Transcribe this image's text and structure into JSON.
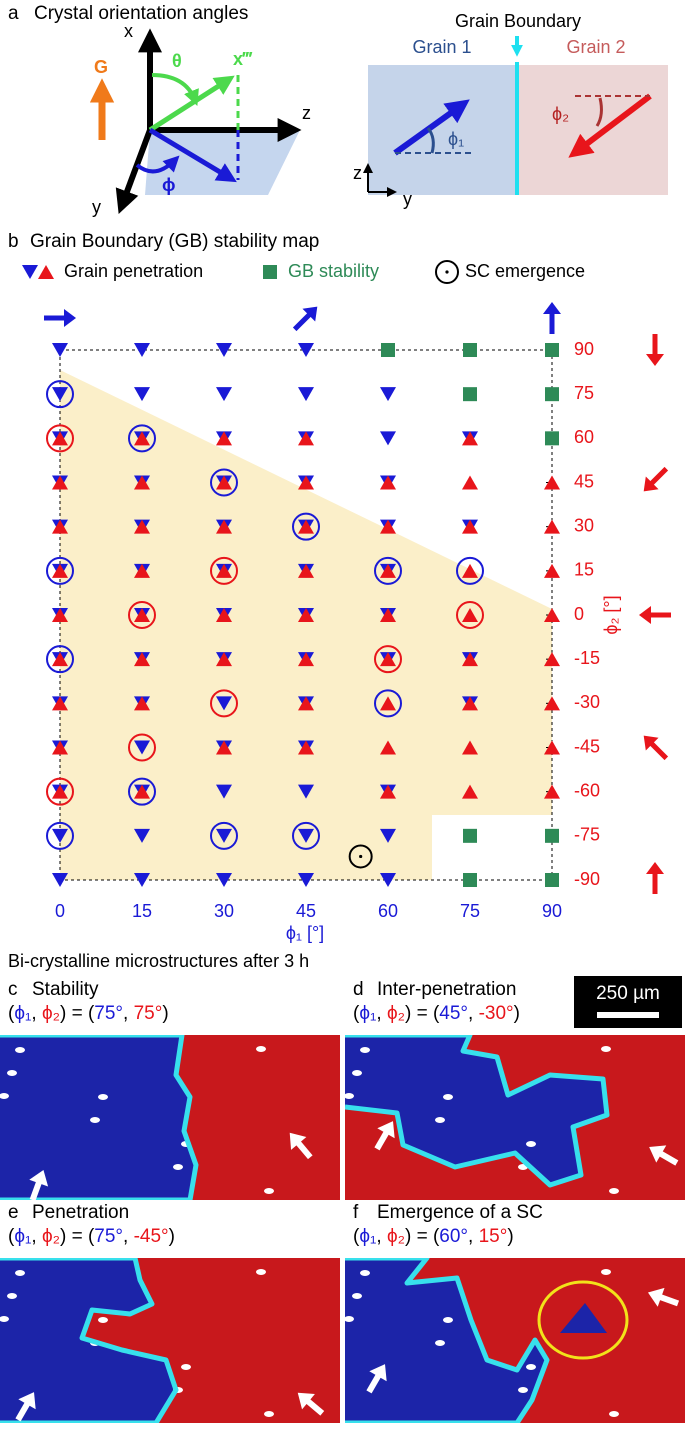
{
  "panel_a": {
    "letter": "a",
    "title": "Crystal orientation angles",
    "axis_x": "x",
    "axis_z": "z",
    "axis_y": "y",
    "gravity": "G",
    "theta": "θ",
    "x_prime": "x‴",
    "phi": "ϕ",
    "gb_title": "Grain Boundary",
    "grain1": "Grain 1",
    "grain2": "Grain 2",
    "phi1": "ϕ₁",
    "phi2": "ϕ₂",
    "small_z": "z",
    "small_y": "y"
  },
  "chart_data": {
    "type": "scatter",
    "panel": "b",
    "title": "Grain Boundary (GB) stability map",
    "x_label": "ϕ₁ [°]",
    "y_label": "ϕ₂ [°]",
    "xlim": [
      0,
      90
    ],
    "ylim": [
      -90,
      90
    ],
    "xticks": [
      0,
      15,
      30,
      45,
      60,
      75,
      90
    ],
    "yticks": [
      90,
      75,
      60,
      45,
      30,
      15,
      0,
      -15,
      -30,
      -45,
      -60,
      -75,
      -90
    ],
    "series": [
      {
        "name": "Grain penetration",
        "marker": "triangle-down",
        "color": "#1a1ad6",
        "legend_text_color": "#000000",
        "x": [
          0,
          15,
          30,
          45,
          0,
          15,
          30,
          45,
          60,
          0,
          15,
          30,
          45,
          60,
          75,
          0,
          15,
          30,
          45,
          60,
          0,
          15,
          30,
          45,
          60,
          75,
          0,
          15,
          30,
          45,
          60,
          0,
          15,
          30,
          45,
          60,
          0,
          15,
          30,
          45,
          60,
          75,
          0,
          15,
          30,
          45,
          75,
          0,
          15,
          30,
          45,
          0,
          15,
          30,
          45,
          60,
          0,
          15,
          30,
          45,
          60,
          0,
          15,
          30,
          45,
          60
        ],
        "y": [
          90,
          90,
          90,
          90,
          75,
          75,
          75,
          75,
          75,
          60,
          60,
          60,
          60,
          60,
          60,
          45,
          45,
          45,
          45,
          45,
          30,
          30,
          30,
          30,
          30,
          30,
          15,
          15,
          15,
          15,
          15,
          0,
          0,
          0,
          0,
          0,
          -15,
          -15,
          -15,
          -15,
          -15,
          -15,
          -30,
          -30,
          -30,
          -30,
          -30,
          -45,
          -45,
          -45,
          -45,
          -60,
          -60,
          -60,
          -60,
          -60,
          -75,
          -75,
          -75,
          -75,
          -75,
          -90,
          -90,
          -90,
          -90,
          -90
        ]
      },
      {
        "marker": "triangle-up",
        "color": "#e8151b",
        "x": [
          0,
          15,
          30,
          45,
          75,
          0,
          15,
          30,
          45,
          60,
          75,
          90,
          0,
          15,
          30,
          45,
          60,
          75,
          90,
          0,
          15,
          30,
          45,
          60,
          75,
          90,
          0,
          15,
          30,
          45,
          60,
          75,
          90,
          0,
          15,
          30,
          45,
          60,
          75,
          90,
          0,
          15,
          45,
          60,
          75,
          90,
          0,
          30,
          45,
          60,
          75,
          90,
          0,
          15,
          60,
          75,
          90
        ],
        "y": [
          60,
          60,
          60,
          60,
          60,
          45,
          45,
          45,
          45,
          45,
          45,
          45,
          30,
          30,
          30,
          30,
          30,
          30,
          30,
          15,
          15,
          15,
          15,
          15,
          15,
          15,
          0,
          0,
          0,
          0,
          0,
          0,
          0,
          -15,
          -15,
          -15,
          -15,
          -15,
          -15,
          -15,
          -30,
          -30,
          -30,
          -30,
          -30,
          -30,
          -45,
          -45,
          -45,
          -45,
          -45,
          -45,
          -60,
          -60,
          -60,
          -60,
          -60
        ]
      },
      {
        "name": "GB stability",
        "marker": "square",
        "color": "#2e8a57",
        "legend_text_color": "#2e8a57",
        "x": [
          60,
          75,
          90,
          75,
          90,
          90,
          75,
          90,
          75,
          90
        ],
        "y": [
          90,
          90,
          90,
          75,
          75,
          60,
          -75,
          -75,
          -90,
          -90
        ]
      },
      {
        "name": "SC emergence",
        "marker": "circle",
        "color": "#000000",
        "legend_text_color": "#000000",
        "x": [
          55
        ],
        "y": [
          -82
        ]
      },
      {
        "marker": "ring",
        "color": "#1a1ad6",
        "x": [
          0,
          15,
          30,
          45,
          0,
          60,
          75,
          0,
          60,
          15,
          0,
          30,
          45
        ],
        "y": [
          75,
          60,
          45,
          30,
          15,
          15,
          15,
          -15,
          -30,
          -60,
          -75,
          -75,
          -75
        ]
      },
      {
        "marker": "ring",
        "color": "#e8151b",
        "x": [
          0,
          30,
          15,
          75,
          60,
          30,
          15,
          0
        ],
        "y": [
          60,
          15,
          0,
          0,
          -15,
          -30,
          -45,
          -60
        ]
      }
    ]
  },
  "micrographs": {
    "title": "Bi-crystalline microstructures after 3 h",
    "scale_bar": "250 µm",
    "panels": [
      {
        "letter": "c",
        "title": "Stability",
        "label": [
          {
            "text": "(",
            "color": "#000"
          },
          {
            "text": "ϕ₁",
            "color": "#1a1ad6"
          },
          {
            "text": ", ",
            "color": "#000"
          },
          {
            "text": "ϕ₂",
            "color": "#e8151b"
          },
          {
            "text": ") = (",
            "color": "#000"
          },
          {
            "text": "75°",
            "color": "#1a1ad6"
          },
          {
            "text": ", ",
            "color": "#000"
          },
          {
            "text": "75°",
            "color": "#e8151b"
          },
          {
            "text": ")",
            "color": "#000"
          }
        ]
      },
      {
        "letter": "d",
        "title": "Inter-penetration",
        "label": [
          {
            "text": "(",
            "color": "#000"
          },
          {
            "text": "ϕ₁",
            "color": "#1a1ad6"
          },
          {
            "text": ", ",
            "color": "#000"
          },
          {
            "text": "ϕ₂",
            "color": "#e8151b"
          },
          {
            "text": ") = (",
            "color": "#000"
          },
          {
            "text": "45°",
            "color": "#1a1ad6"
          },
          {
            "text": ", ",
            "color": "#000"
          },
          {
            "text": "-30°",
            "color": "#e8151b"
          },
          {
            "text": ")",
            "color": "#000"
          }
        ]
      },
      {
        "letter": "e",
        "title": "Penetration",
        "label": [
          {
            "text": "(",
            "color": "#000"
          },
          {
            "text": "ϕ₁",
            "color": "#1a1ad6"
          },
          {
            "text": ", ",
            "color": "#000"
          },
          {
            "text": "ϕ₂",
            "color": "#e8151b"
          },
          {
            "text": ") = (",
            "color": "#000"
          },
          {
            "text": "75°",
            "color": "#1a1ad6"
          },
          {
            "text": ", ",
            "color": "#000"
          },
          {
            "text": "-45°",
            "color": "#e8151b"
          },
          {
            "text": ")",
            "color": "#000"
          }
        ]
      },
      {
        "letter": "f",
        "title": "Emergence of a SC",
        "label": [
          {
            "text": "(",
            "color": "#000"
          },
          {
            "text": "ϕ₁",
            "color": "#1a1ad6"
          },
          {
            "text": ", ",
            "color": "#000"
          },
          {
            "text": "ϕ₂",
            "color": "#e8151b"
          },
          {
            "text": ") = (",
            "color": "#000"
          },
          {
            "text": "60°",
            "color": "#1a1ad6"
          },
          {
            "text": ", ",
            "color": "#000"
          },
          {
            "text": "15°",
            "color": "#e8151b"
          },
          {
            "text": ")",
            "color": "#000"
          }
        ]
      }
    ]
  }
}
